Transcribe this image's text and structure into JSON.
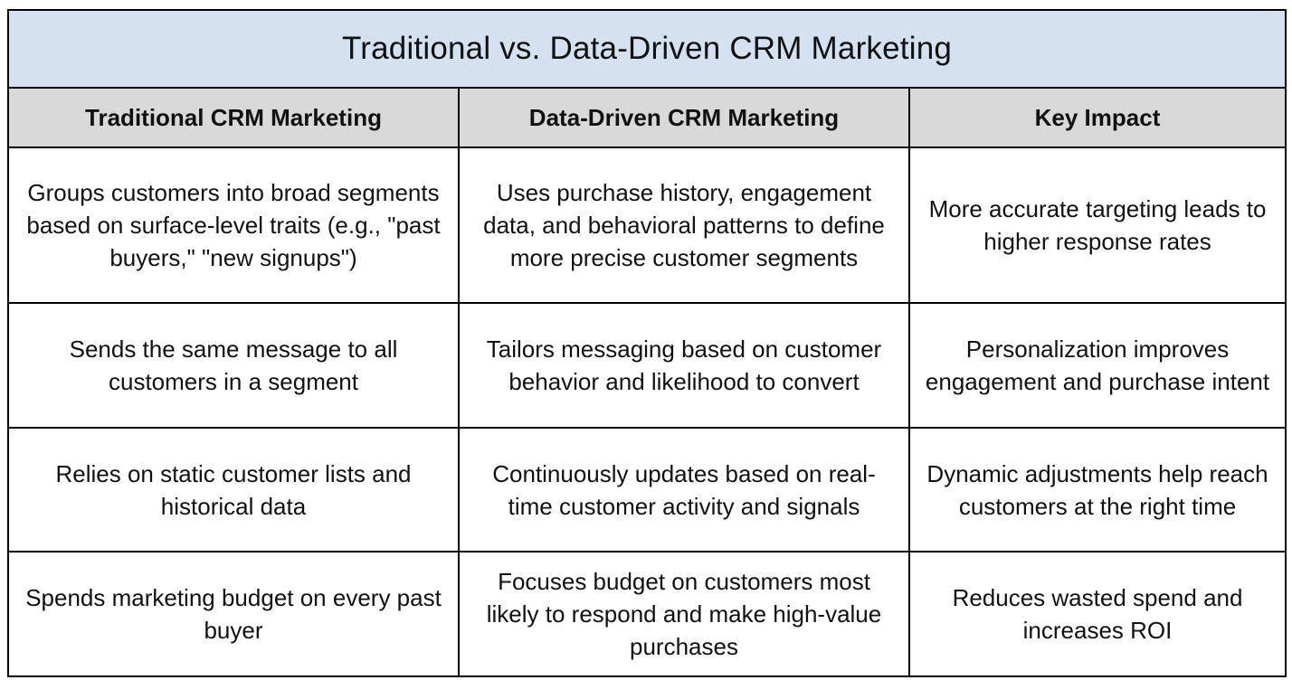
{
  "title": "Traditional vs. Data-Driven CRM Marketing",
  "headers": [
    "Traditional CRM Marketing",
    "Data-Driven CRM Marketing",
    "Key Impact"
  ],
  "rows": [
    [
      "Groups customers into broad segments based on surface-level traits (e.g., \"past buyers,\" \"new signups\")",
      "Uses purchase history, engagement data, and behavioral patterns to define more precise customer segments",
      "More accurate targeting leads to higher response rates"
    ],
    [
      "Sends the same message to all customers in a segment",
      "Tailors messaging based on customer behavior and likelihood to convert",
      "Personalization improves engagement and purchase intent"
    ],
    [
      "Relies on static customer lists and historical data",
      "Continuously updates based on real-time customer activity and signals",
      "Dynamic adjustments help reach customers at the right time"
    ],
    [
      "Spends marketing budget on every past buyer",
      "Focuses budget on customers most likely to respond and make high-value purchases",
      "Reduces wasted spend and increases ROI"
    ]
  ],
  "colors": {
    "title_bg": "#d4e1f1",
    "header_bg": "#d9d9d9",
    "border": "#000000"
  }
}
